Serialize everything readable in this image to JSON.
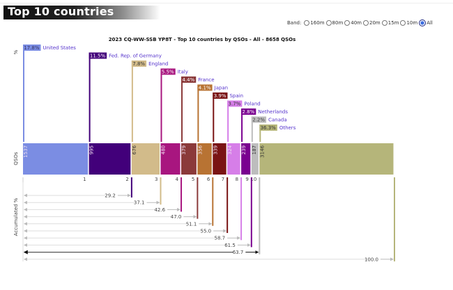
{
  "header": {
    "title": "Top 10 countries"
  },
  "band_selector": {
    "label": "Band:",
    "options": [
      {
        "label": "160m",
        "checked": false
      },
      {
        "label": "80m",
        "checked": false
      },
      {
        "label": "40m",
        "checked": false
      },
      {
        "label": "20m",
        "checked": false
      },
      {
        "label": "15m",
        "checked": false
      },
      {
        "label": "10m",
        "checked": false
      },
      {
        "label": "All",
        "checked": true
      }
    ]
  },
  "chart_data": {
    "type": "bar",
    "title": "2023 CQ-WW-SSB YP8T - Top 10 countries by QSOs - All - 8658 QSOs",
    "ylabel_percent": "%",
    "ylabel_qsos": "QSOs",
    "ylabel_accumulated": "Accumulated %",
    "total_qsos": 8658,
    "categories": [
      "United States",
      "Fed. Rep. of Germany",
      "England",
      "Italy",
      "France",
      "Japan",
      "Spain",
      "Poland",
      "Netherlands",
      "Canada",
      "Others"
    ],
    "ranks": [
      "1",
      "2",
      "3",
      "4",
      "5",
      "6",
      "7",
      "8",
      "9",
      "10",
      ""
    ],
    "values": [
      1537,
      995,
      676,
      480,
      379,
      356,
      339,
      324,
      239,
      187,
      3146
    ],
    "percent_labels": [
      "17.8%",
      "11.5%",
      "7.8%",
      "5.5%",
      "4.4%",
      "4.1%",
      "3.9%",
      "3.7%",
      "2.8%",
      "2.2%",
      "36.3%"
    ],
    "accumulated_labels": [
      "29.2",
      "37.1",
      "42.6",
      "47.0",
      "51.1",
      "55.0",
      "58.7",
      "61.5",
      "63.7",
      "100.0"
    ],
    "colors": [
      "#7b8de3",
      "#42007a",
      "#d2bb8a",
      "#a8167f",
      "#8b3a3a",
      "#b87333",
      "#7a1414",
      "#d67ee8",
      "#7a0090",
      "#bdbdbd",
      "#b5b57a"
    ],
    "percent_text_colors": [
      "#333366",
      "#ffffff",
      "#333333",
      "#ffffff",
      "#ffffff",
      "#ffffff",
      "#ffffff",
      "#333333",
      "#ffffff",
      "#444444",
      "#333333"
    ]
  }
}
